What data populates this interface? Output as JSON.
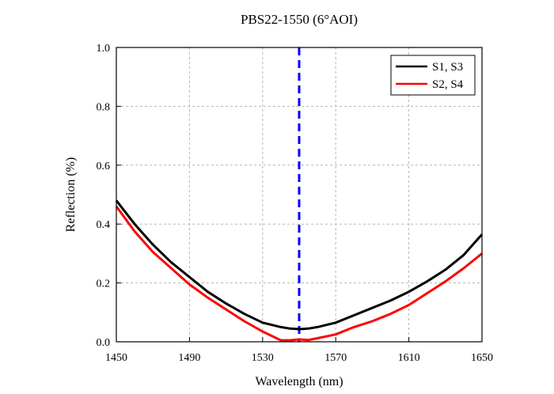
{
  "chart_data": {
    "type": "line",
    "title": "PBS22-1550 (6°AOI)",
    "xlabel": "Wavelength (nm)",
    "ylabel": "Reflection (%)",
    "xlim": [
      1450,
      1650
    ],
    "ylim": [
      0.0,
      1.0
    ],
    "xticks": [
      "1450",
      "1490",
      "1530",
      "1570",
      "1610",
      "1650"
    ],
    "yticks": [
      "0.0",
      "0.2",
      "0.4",
      "0.6",
      "0.8",
      "1.0"
    ],
    "grid": true,
    "legend_position": "top-right",
    "marker_line_x": 1550,
    "series": [
      {
        "name": "S1, S3",
        "color": "#000000",
        "x": [
          1450,
          1460,
          1470,
          1480,
          1490,
          1500,
          1510,
          1520,
          1530,
          1540,
          1545,
          1550,
          1555,
          1560,
          1570,
          1580,
          1590,
          1600,
          1610,
          1620,
          1630,
          1640,
          1650
        ],
        "y": [
          0.48,
          0.4,
          0.33,
          0.27,
          0.22,
          0.17,
          0.13,
          0.095,
          0.065,
          0.05,
          0.045,
          0.043,
          0.045,
          0.05,
          0.065,
          0.09,
          0.115,
          0.14,
          0.17,
          0.205,
          0.245,
          0.295,
          0.365
        ]
      },
      {
        "name": "S2, S4",
        "color": "#ff0000",
        "x": [
          1450,
          1460,
          1470,
          1480,
          1490,
          1500,
          1510,
          1520,
          1530,
          1535,
          1540,
          1545,
          1550,
          1555,
          1560,
          1570,
          1580,
          1590,
          1600,
          1610,
          1620,
          1630,
          1640,
          1650
        ],
        "y": [
          0.46,
          0.375,
          0.305,
          0.25,
          0.195,
          0.15,
          0.11,
          0.07,
          0.035,
          0.02,
          0.005,
          0.005,
          0.008,
          0.006,
          0.012,
          0.025,
          0.05,
          0.07,
          0.095,
          0.125,
          0.165,
          0.205,
          0.25,
          0.3
        ]
      }
    ]
  }
}
